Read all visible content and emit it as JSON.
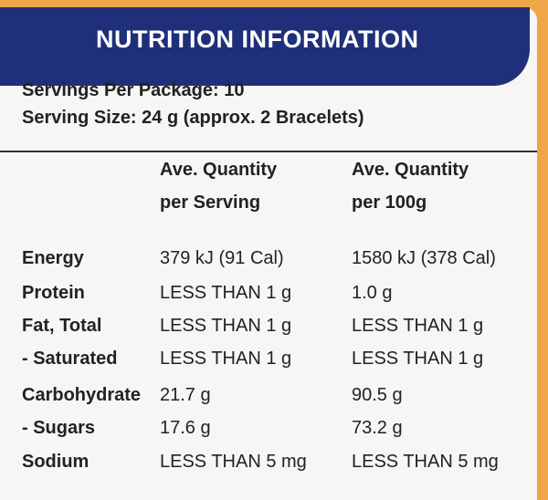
{
  "header": {
    "title": "NUTRITION INFORMATION"
  },
  "servings": [
    "Servings Per Package: 10",
    "Serving Size: 24 g (approx. 2 Bracelets)"
  ],
  "table": {
    "columns": [
      [
        "Ave. Quantity",
        "per Serving"
      ],
      [
        "Ave. Quantity",
        "per 100g"
      ]
    ],
    "rows": [
      [
        "Energy",
        "379 kJ (91 Cal)",
        "1580 kJ (378 Cal)"
      ],
      [
        "Protein",
        "LESS THAN 1 g",
        "1.0 g"
      ],
      [
        "Fat, Total",
        "LESS THAN 1 g",
        "LESS THAN 1 g"
      ],
      [
        "- Saturated",
        "LESS THAN 1 g",
        "LESS THAN 1 g"
      ],
      [
        "Carbohydrate",
        "21.7 g",
        "90.5 g"
      ],
      [
        "- Sugars",
        "17.6 g",
        "73.2 g"
      ],
      [
        "Sodium",
        "LESS THAN 5 mg",
        "LESS THAN 5 mg"
      ]
    ]
  }
}
